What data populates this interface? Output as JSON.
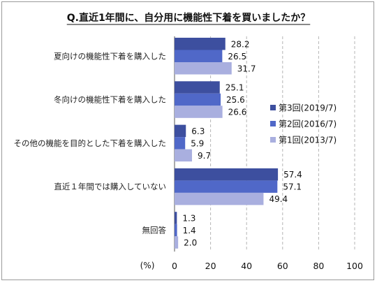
{
  "chart_data": {
    "type": "bar",
    "orientation": "horizontal",
    "title": "Q.直近1年間に、自分用に機能性下着を買いましたか？",
    "unit_label": "(%)",
    "categories": [
      "夏向けの機能性下着を購入した",
      "冬向けの機能性下着を購入した",
      "その他の機能を目的とした下着を購入した",
      "直近１年間では購入していない",
      "無回答"
    ],
    "series": [
      {
        "name": "第3回(2019/7)",
        "color": "#3d4f9f",
        "values": [
          28.2,
          25.1,
          6.3,
          57.4,
          1.3
        ]
      },
      {
        "name": "第2回(2016/7)",
        "color": "#5068c8",
        "values": [
          26.5,
          25.6,
          5.9,
          57.1,
          1.4
        ]
      },
      {
        "name": "第1回(2013/7)",
        "color": "#a9afdf",
        "values": [
          31.7,
          26.6,
          9.7,
          49.4,
          2.0
        ]
      }
    ],
    "value_labels": [
      [
        "28.2",
        "25.1",
        "6.3",
        "57.4",
        "1.3"
      ],
      [
        "26.5",
        "25.6",
        "5.9",
        "57.1",
        "1.4"
      ],
      [
        "31.7",
        "26.6",
        "9.7",
        "49.4",
        "2.0"
      ]
    ],
    "xlim": [
      0,
      100
    ],
    "xticks": [
      0,
      20,
      40,
      60,
      80,
      100
    ],
    "grid": "vertical dashed",
    "legend_position": "right"
  }
}
